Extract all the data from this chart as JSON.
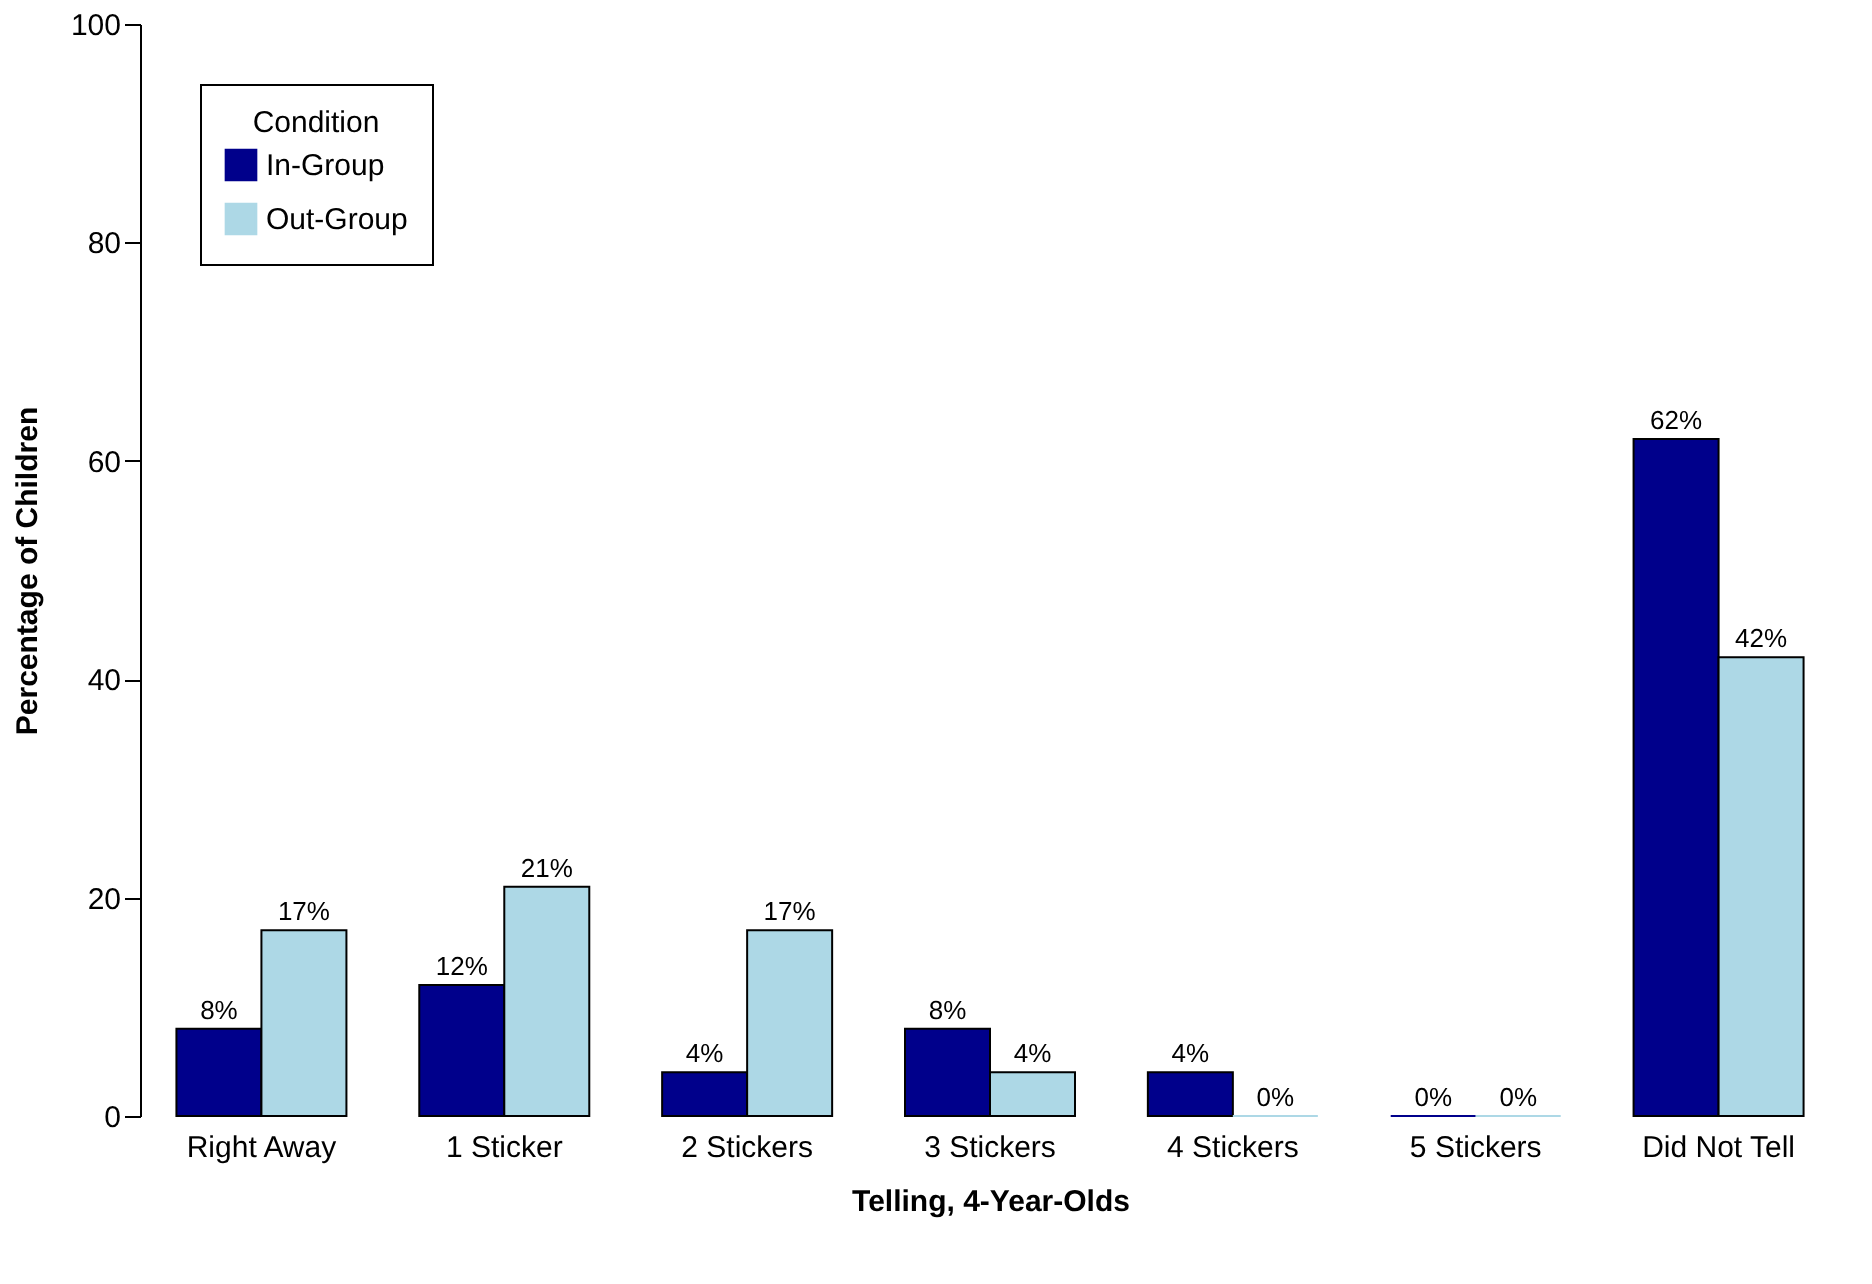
{
  "chart_data": {
    "type": "bar",
    "xlabel": "Telling, 4-Year-Olds",
    "ylabel": "Percentage of Children",
    "legend_title": "Condition",
    "legend": "top left",
    "grid": false,
    "categories": [
      "Right Away",
      "1 Sticker",
      "2 Stickers",
      "3 Stickers",
      "4 Stickers",
      "5 Stickers",
      "Did Not Tell"
    ],
    "ylim": [
      0,
      100
    ],
    "yticks": [
      0,
      20,
      40,
      60,
      80,
      100
    ],
    "series": [
      {
        "name": "In-Group",
        "color": "#00008b",
        "values": [
          8,
          12,
          4,
          8,
          4,
          0,
          62
        ],
        "value_labels": [
          "8%",
          "12%",
          "4%",
          "8%",
          "4%",
          "0%",
          "62%"
        ]
      },
      {
        "name": "Out-Group",
        "color": "#add8e6",
        "values": [
          17,
          21,
          17,
          4,
          0,
          0,
          42
        ],
        "value_labels": [
          "17%",
          "21%",
          "17%",
          "4%",
          "0%",
          "0%",
          "42%"
        ]
      }
    ]
  }
}
